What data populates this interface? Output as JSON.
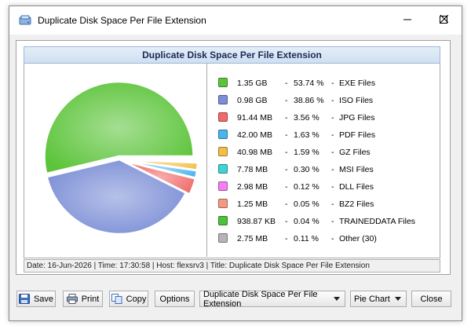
{
  "window": {
    "title": "Duplicate Disk Space Per File Extension"
  },
  "panel": {
    "header": "Duplicate Disk Space Per File Extension",
    "footer": "Date: 16-Jun-2026 | Time: 17:30:58 | Host: flexsrv3 | Title: Duplicate Disk Space Per File Extension"
  },
  "legend": [
    {
      "size": "1.35 GB",
      "percent": "53.74 %",
      "name": "EXE Files",
      "color": "#5cc43a"
    },
    {
      "size": "0.98 GB",
      "percent": "38.86 %",
      "name": "ISO Files",
      "color": "#7b8ed6"
    },
    {
      "size": "91.44 MB",
      "percent": "3.56 %",
      "name": "JPG Files",
      "color": "#f06a6a"
    },
    {
      "size": "42.00 MB",
      "percent": "1.63 %",
      "name": "PDF Files",
      "color": "#4ab4ee"
    },
    {
      "size": "40.98 MB",
      "percent": "1.59 %",
      "name": "GZ Files",
      "color": "#f3be46"
    },
    {
      "size": "7.78 MB",
      "percent": "0.30 %",
      "name": "MSI Files",
      "color": "#3fd3d3"
    },
    {
      "size": "2.98 MB",
      "percent": "0.12 %",
      "name": "DLL Files",
      "color": "#f37ff0"
    },
    {
      "size": "1.25 MB",
      "percent": "0.05 %",
      "name": "BZ2 Files",
      "color": "#f29a80"
    },
    {
      "size": "938.87 KB",
      "percent": "0.04 %",
      "name": "TRAINEDDATA Files",
      "color": "#4cc23a"
    },
    {
      "size": "2.75 MB",
      "percent": "0.11 %",
      "name": "Other (30)",
      "color": "#b5b5b5"
    }
  ],
  "chart_data": {
    "type": "pie",
    "title": "Duplicate Disk Space Per File Extension",
    "categories": [
      "EXE Files",
      "ISO Files",
      "JPG Files",
      "PDF Files",
      "GZ Files",
      "MSI Files",
      "DLL Files",
      "BZ2 Files",
      "TRAINEDDATA Files",
      "Other (30)"
    ],
    "values": [
      53.74,
      38.86,
      3.56,
      1.63,
      1.59,
      0.3,
      0.12,
      0.05,
      0.04,
      0.11
    ],
    "colors": [
      "#5cc43a",
      "#7b8ed6",
      "#f06a6a",
      "#4ab4ee",
      "#f3be46",
      "#3fd3d3",
      "#f37ff0",
      "#f29a80",
      "#4cc23a",
      "#b5b5b5"
    ]
  },
  "toolbar": {
    "save": "Save",
    "print": "Print",
    "copy": "Copy",
    "options": "Options",
    "report_select": "Duplicate Disk Space Per File Extension",
    "chart_select": "Pie Chart",
    "close": "Close"
  }
}
